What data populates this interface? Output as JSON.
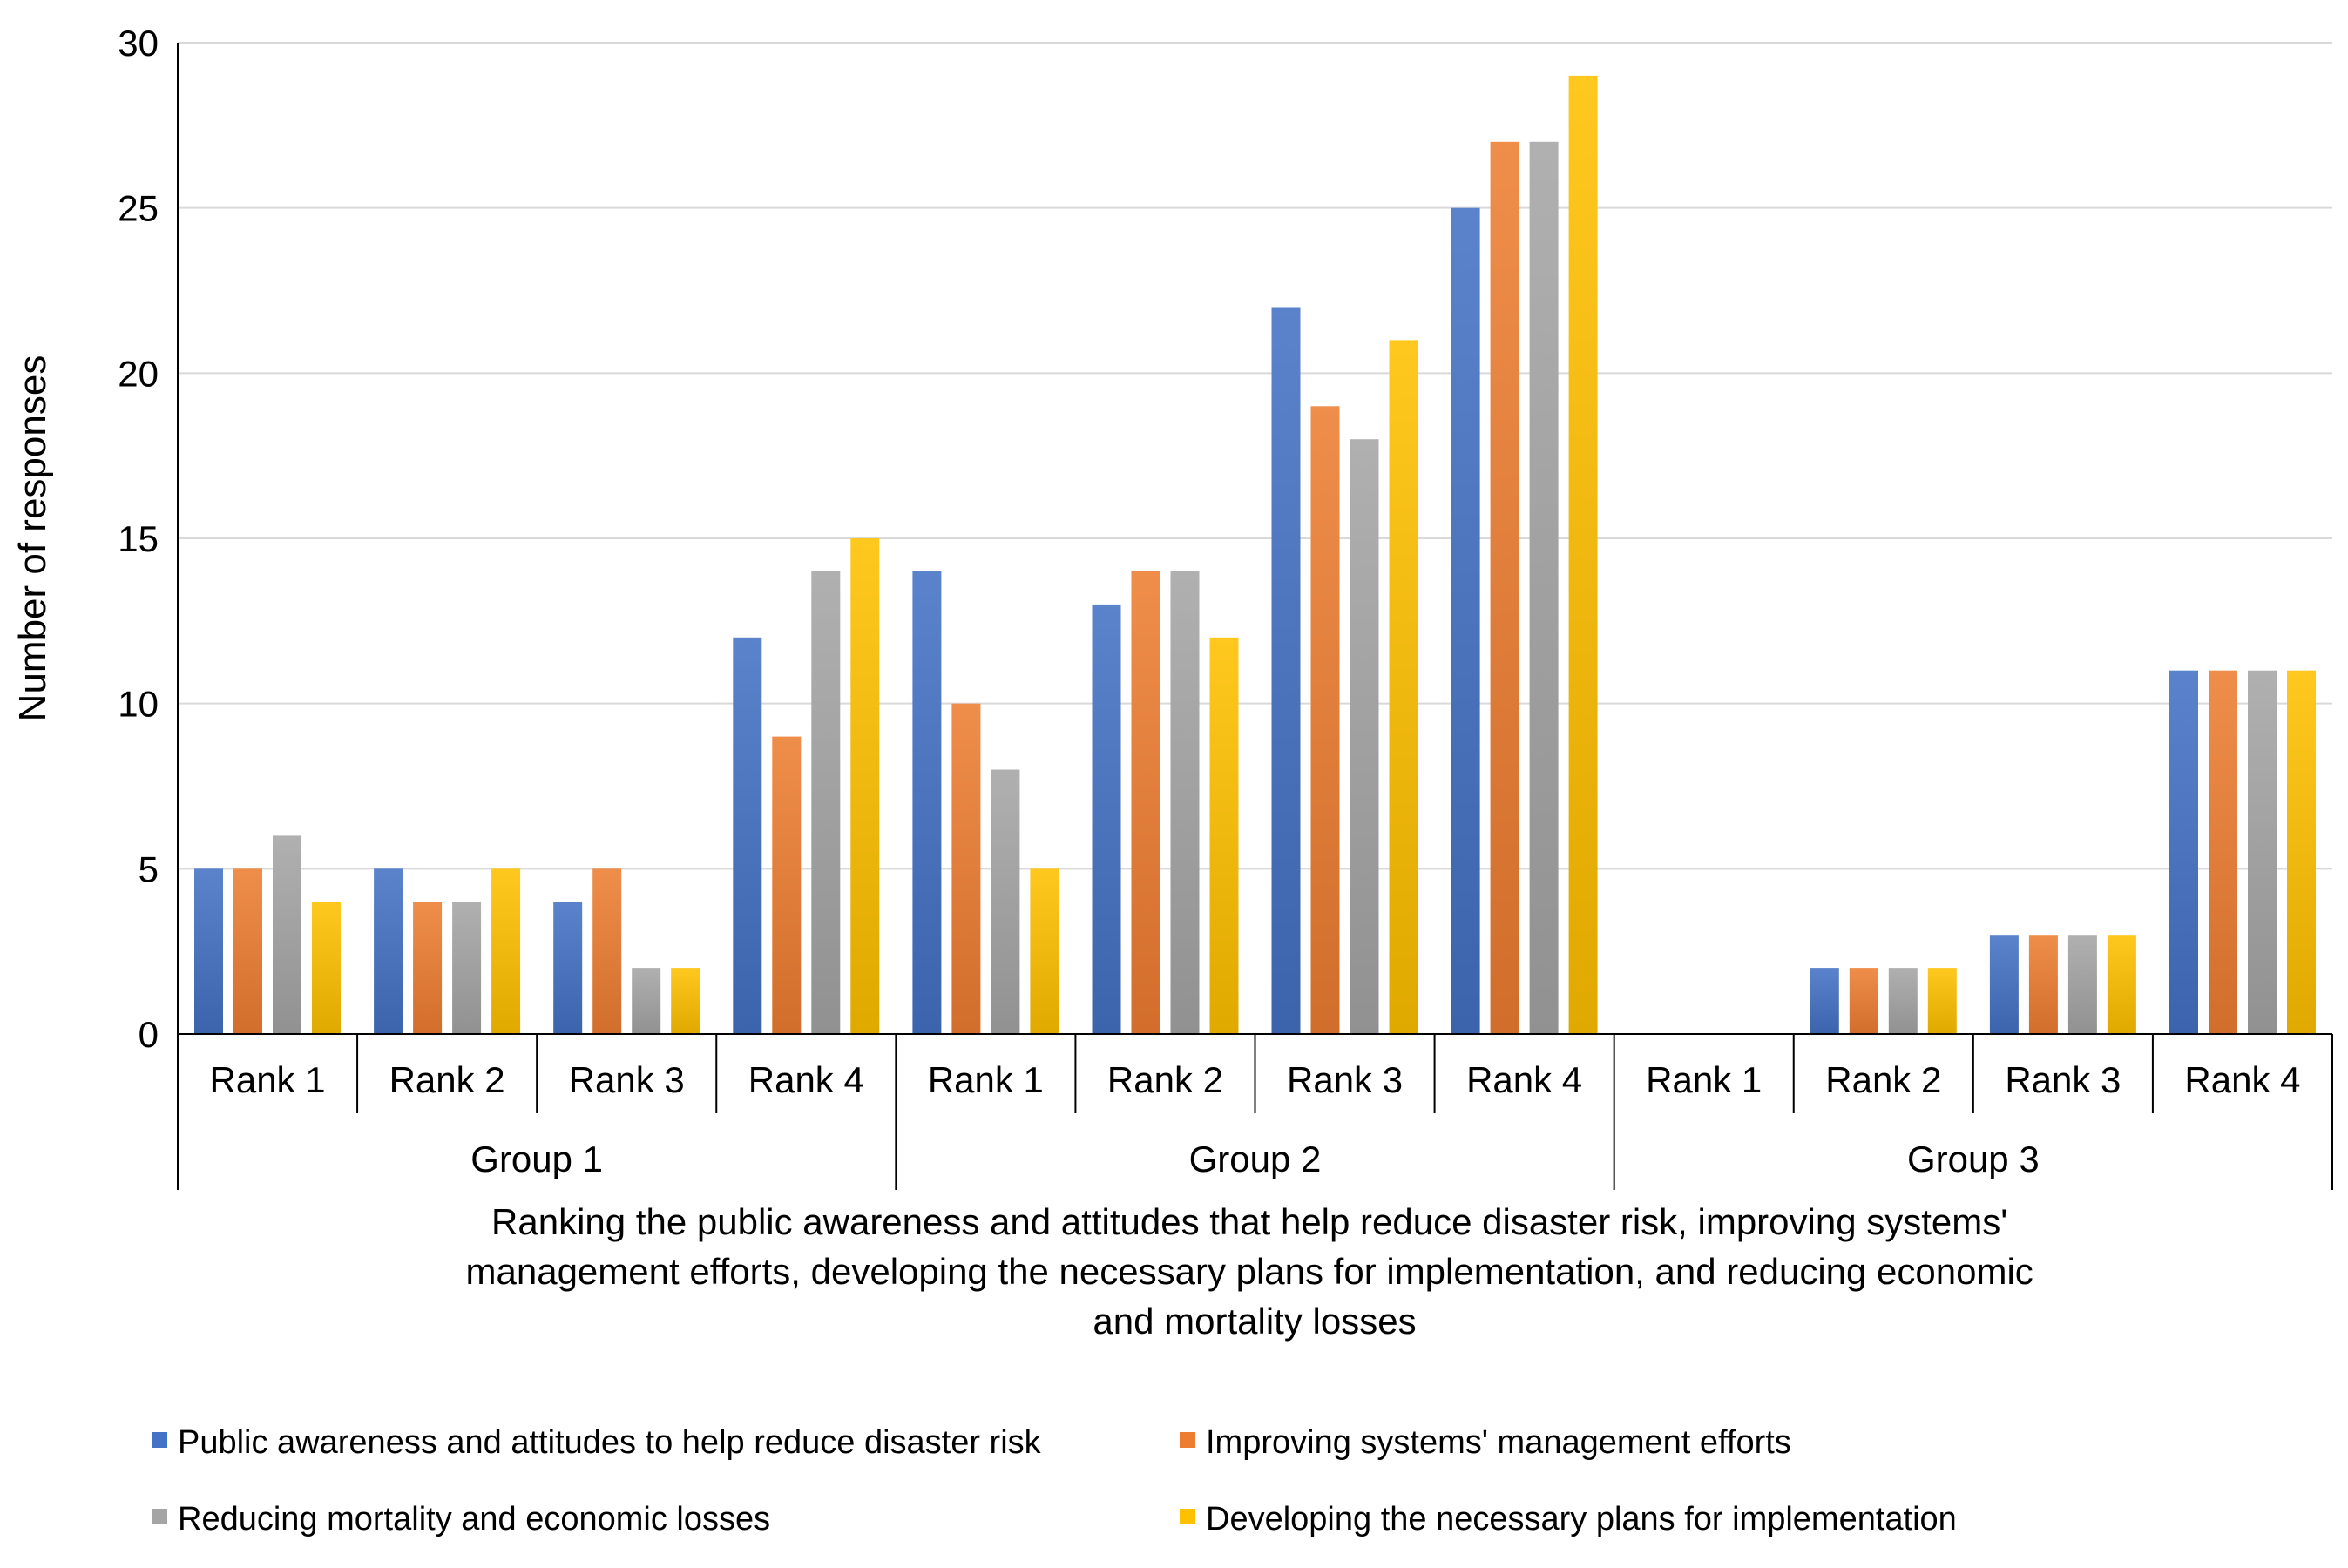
{
  "chart_data": {
    "type": "bar",
    "title": "",
    "ylabel": "Number of responses",
    "xlabel_lines": [
      "Ranking the public awareness and attitudes that help reduce disaster risk, improving systems'",
      "management efforts, developing the necessary plans for implementation, and reducing economic",
      "and mortality losses"
    ],
    "ylim": [
      0,
      30
    ],
    "yticks": [
      0,
      5,
      10,
      15,
      20,
      25,
      30
    ],
    "grid": true,
    "legend_position": "bottom",
    "groups": [
      "Group 1",
      "Group 2",
      "Group 3"
    ],
    "categories": [
      "Rank 1",
      "Rank 2",
      "Rank 3",
      "Rank 4",
      "Rank 1",
      "Rank 2",
      "Rank 3",
      "Rank 4",
      "Rank 1",
      "Rank 2",
      "Rank 3",
      "Rank 4"
    ],
    "series": [
      {
        "name": "Public awareness and attitudes to help reduce disaster risk",
        "color": "#4472C4",
        "values": [
          5,
          5,
          4,
          12,
          14,
          13,
          22,
          25,
          0,
          2,
          3,
          11
        ]
      },
      {
        "name": "Improving systems' management efforts",
        "color": "#ED7D31",
        "values": [
          5,
          4,
          5,
          9,
          10,
          14,
          19,
          27,
          0,
          2,
          3,
          11
        ]
      },
      {
        "name": "Reducing mortality and economic losses",
        "color": "#A5A5A5",
        "values": [
          6,
          4,
          2,
          14,
          8,
          14,
          18,
          27,
          0,
          2,
          3,
          11
        ]
      },
      {
        "name": "Developing the necessary plans for implementation",
        "color": "#FFC000",
        "values": [
          4,
          5,
          2,
          15,
          5,
          12,
          21,
          29,
          0,
          2,
          3,
          11
        ]
      }
    ]
  }
}
